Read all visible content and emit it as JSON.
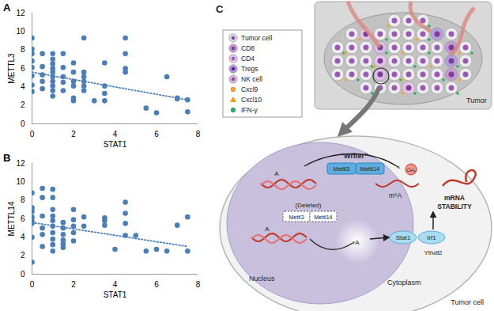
{
  "chart_data": [
    {
      "type": "scatter",
      "panel_label": "A",
      "x_label": "STAT1",
      "y_label": "METTL3",
      "xlim": [
        0,
        8
      ],
      "ylim": [
        0,
        12
      ],
      "xticks": [
        0,
        2,
        4,
        6,
        8
      ],
      "yticks": [
        0,
        2,
        4,
        6,
        8,
        10,
        12
      ],
      "series": [
        {
          "type": "scatter",
          "color": "#4a7ebb",
          "marker": "circle",
          "x": [
            0,
            0,
            0,
            0,
            0,
            0,
            0,
            0,
            0.5,
            0.5,
            0.5,
            0.5,
            0.5,
            1,
            1,
            1,
            1,
            1,
            1,
            1,
            1,
            1,
            1,
            1.5,
            1.5,
            1.5,
            1.5,
            1.5,
            2,
            2,
            2,
            2,
            2,
            2,
            2.5,
            2.5,
            2.5,
            2.5,
            2.5,
            2.5,
            3,
            3.5,
            3.5,
            3.5,
            3.5,
            4.5,
            4.5,
            4.5,
            4.5,
            5.5,
            6,
            6.5,
            7,
            7,
            7.5,
            7.5
          ],
          "values": [
            9.3,
            8.1,
            7.6,
            6.8,
            6.1,
            5.2,
            4.2,
            3.5,
            7.6,
            6.2,
            5.3,
            4.6,
            3.8,
            7.6,
            7.0,
            6.5,
            6.0,
            5.6,
            5.1,
            4.6,
            4.1,
            3.6,
            3.0,
            7.6,
            6.1,
            5.1,
            4.5,
            3.6,
            6.6,
            5.6,
            4.6,
            4.1,
            2.8,
            2.5,
            9.3,
            5.6,
            5.1,
            4.6,
            4.1,
            3.6,
            2.5,
            6.6,
            4.1,
            3.3,
            2.5,
            9.3,
            7.6,
            6.0,
            5.6,
            1.7,
            1.2,
            5.1,
            2.8,
            2.7,
            2.6,
            1.3
          ]
        },
        {
          "type": "line",
          "color": "#4a7ebb",
          "line_style": "dotted",
          "x": [
            0,
            7.5
          ],
          "values": [
            5.6,
            2.6
          ]
        }
      ]
    },
    {
      "type": "scatter",
      "panel_label": "B",
      "x_label": "STAT1",
      "y_label": "METTL14",
      "xlim": [
        0,
        8
      ],
      "ylim": [
        0,
        12
      ],
      "xticks": [
        0,
        2,
        4,
        6,
        8
      ],
      "yticks": [
        0,
        2,
        4,
        6,
        8,
        10,
        12
      ],
      "series": [
        {
          "type": "scatter",
          "color": "#4a7ebb",
          "marker": "circle",
          "x": [
            0,
            0,
            0,
            0,
            0,
            0,
            0,
            0,
            0.5,
            0.5,
            0.5,
            0.5,
            0.5,
            0.5,
            1,
            1,
            1,
            1,
            1,
            1,
            1,
            1,
            1,
            1,
            1.5,
            1.5,
            1.5,
            1.5,
            1.5,
            1.5,
            2,
            2,
            2,
            2,
            2,
            2.5,
            2.5,
            3.5,
            3.5,
            3.5,
            4,
            4.5,
            4.5,
            4.5,
            4.5,
            5,
            5.5,
            6,
            6.5,
            7,
            7.5,
            7.5
          ],
          "values": [
            8.8,
            7.2,
            6.8,
            6.2,
            5.8,
            5.5,
            4.0,
            1.3,
            9.3,
            8.3,
            6.3,
            5.0,
            4.3,
            3.0,
            9.2,
            8.3,
            7.0,
            6.3,
            5.8,
            5.2,
            4.5,
            3.8,
            3.2,
            2.5,
            5.6,
            5.0,
            4.3,
            3.7,
            3.3,
            2.9,
            7.0,
            5.9,
            5.2,
            4.5,
            3.6,
            6.2,
            5.2,
            6.1,
            5.8,
            5.3,
            2.7,
            7.8,
            6.6,
            5.5,
            4.2,
            4.2,
            2.5,
            2.7,
            2.5,
            5.3,
            6.2,
            2.5
          ]
        },
        {
          "type": "line",
          "color": "#4a7ebb",
          "line_style": "dotted",
          "x": [
            0,
            7.5
          ],
          "values": [
            5.6,
            3.0
          ]
        }
      ]
    }
  ],
  "diagram": {
    "panel_label": "C",
    "key_items": [
      "Tumor cell",
      "CD8",
      "CD4",
      "Tregs",
      "NK cell",
      "Cxcl9",
      "Cxcl10",
      "IFN-γ"
    ],
    "tumor_label": "Tumor",
    "writer_label": "\"Writer\"",
    "writer_enzymes": [
      "Mettl3",
      "Mettl14"
    ],
    "base_label": "A",
    "modification": "m⁶A",
    "methyl": "CH₃",
    "deleted_label": "(Deleted)",
    "deleted_enzymes": [
      "Mettl3",
      "Mettl14"
    ],
    "targets": [
      "Stat1",
      "Irf1"
    ],
    "reader": "Ythdf2",
    "outcome": [
      "mRNA",
      "STABILITY"
    ],
    "compartments": [
      "Nucleus",
      "Cytoplasm",
      "Tumor cell"
    ]
  }
}
